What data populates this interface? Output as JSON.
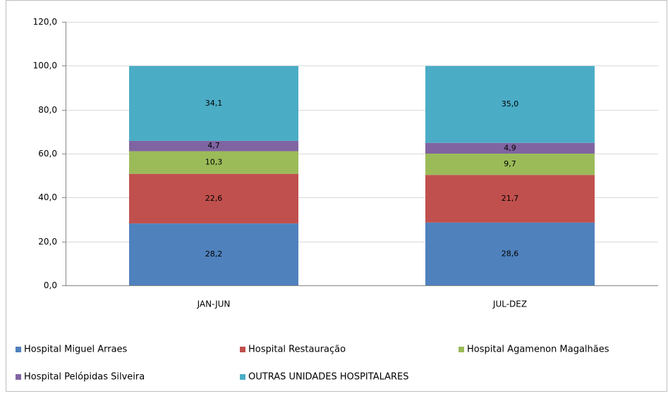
{
  "chart_data": {
    "type": "stacked-bar",
    "categories": [
      "JAN-JUN",
      "JUL-DEZ"
    ],
    "series": [
      {
        "name": "Hospital Miguel Arraes",
        "color": "#4f81bd",
        "values": [
          28.2,
          28.6
        ],
        "value_labels": [
          "28,2",
          "28,6"
        ]
      },
      {
        "name": "Hospital Restauração",
        "color": "#c0504d",
        "values": [
          22.6,
          21.7
        ],
        "value_labels": [
          "22,6",
          "21,7"
        ]
      },
      {
        "name": "Hospital Agamenon Magalhães",
        "color": "#9bbb59",
        "values": [
          10.3,
          9.7
        ],
        "value_labels": [
          "10,3",
          "9,7"
        ]
      },
      {
        "name": "Hospital Pelópidas Silveira",
        "color": "#8064a2",
        "values": [
          4.7,
          4.9
        ],
        "value_labels": [
          "4,7",
          "4,9"
        ]
      },
      {
        "name": "OUTRAS UNIDADES HOSPITALARES",
        "color": "#4bacc6",
        "values": [
          34.1,
          35.0
        ],
        "value_labels": [
          "34,1",
          "35,0"
        ]
      }
    ],
    "ylim": [
      0,
      120
    ],
    "yticks": [
      {
        "value": 0,
        "label": "0,0"
      },
      {
        "value": 20,
        "label": "20,0"
      },
      {
        "value": 40,
        "label": "40,0"
      },
      {
        "value": 60,
        "label": "60,0"
      },
      {
        "value": 80,
        "label": "80,0"
      },
      {
        "value": 100,
        "label": "100,0"
      },
      {
        "value": 120,
        "label": "120,0"
      }
    ],
    "grid": true
  }
}
